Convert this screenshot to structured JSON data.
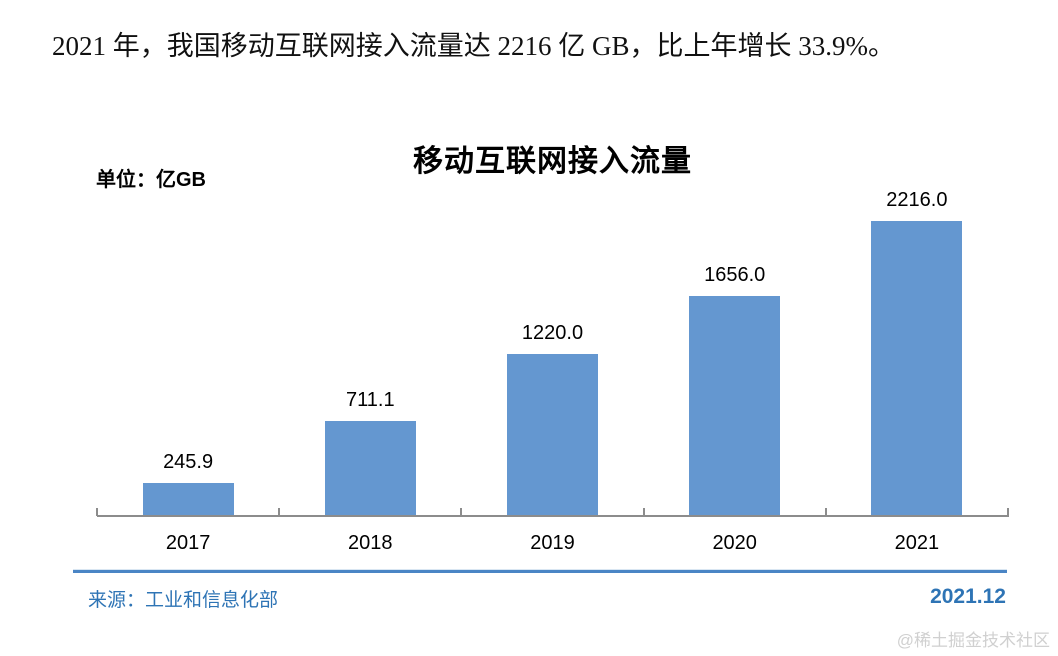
{
  "headline": "2021 年，我国移动互联网接入流量达 2216 亿 GB，比上年增长 33.9%。",
  "chart": {
    "title": "移动互联网接入流量",
    "unit_label": "单位：亿GB",
    "source": "来源：工业和信息化部",
    "date": "2021.12"
  },
  "watermark": "@稀土掘金技术社区",
  "chart_data": {
    "type": "bar",
    "title": "移动互联网接入流量",
    "unit": "亿GB",
    "categories": [
      "2017",
      "2018",
      "2019",
      "2020",
      "2021"
    ],
    "values": [
      245.9,
      711.1,
      1220.0,
      1656.0,
      2216.0
    ],
    "value_labels": [
      "245.9",
      "711.1",
      "1220.0",
      "1656.0",
      "2216.0"
    ],
    "bar_color": "#6497d0",
    "axis_color": "#8c8c8c",
    "accent_blue": "#2e74b5",
    "ylim": [
      0,
      2216
    ],
    "grid": false,
    "legend": false,
    "xlabel": "",
    "ylabel": "亿GB"
  }
}
